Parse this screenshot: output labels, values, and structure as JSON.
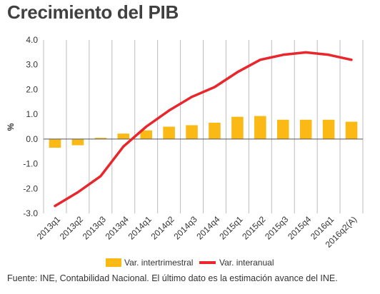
{
  "title": "Crecimiento del PIB",
  "footer": "Fuente: INE, Contabilidad Nacional. El último dato es la estimación avance del INE.",
  "chart_data": {
    "type": "bar+line",
    "title": "Crecimiento del PIB",
    "xlabel": "",
    "ylabel": "%",
    "ylim": [
      -3.0,
      4.0
    ],
    "yticks": [
      "4.0",
      "3.0",
      "2.0",
      "1.0",
      "0.0",
      "-1.0",
      "-2.0",
      "-3.0"
    ],
    "ytick_values": [
      4,
      3,
      2,
      1,
      0,
      -1,
      -2,
      -3
    ],
    "grid": "vertical",
    "legend_position": "bottom",
    "categories": [
      "2013q1",
      "2013q2",
      "2013q3",
      "2013q4",
      "2014q1",
      "2014q2",
      "2014q3",
      "2014q4",
      "2015q1",
      "2015q2",
      "2015q3",
      "2015q4",
      "2016q1",
      "2016q2(A)"
    ],
    "series": [
      {
        "name": "Var. intertrimestral",
        "type": "bar",
        "color": "#fbb916",
        "values": [
          -0.35,
          -0.25,
          0.05,
          0.22,
          0.35,
          0.5,
          0.56,
          0.66,
          0.9,
          0.93,
          0.78,
          0.78,
          0.78,
          0.7
        ]
      },
      {
        "name": "Var. interanual",
        "type": "line",
        "color": "#e8262c",
        "values": [
          -2.7,
          -2.15,
          -1.5,
          -0.3,
          0.5,
          1.15,
          1.7,
          2.1,
          2.7,
          3.2,
          3.4,
          3.5,
          3.4,
          3.2
        ]
      }
    ]
  }
}
